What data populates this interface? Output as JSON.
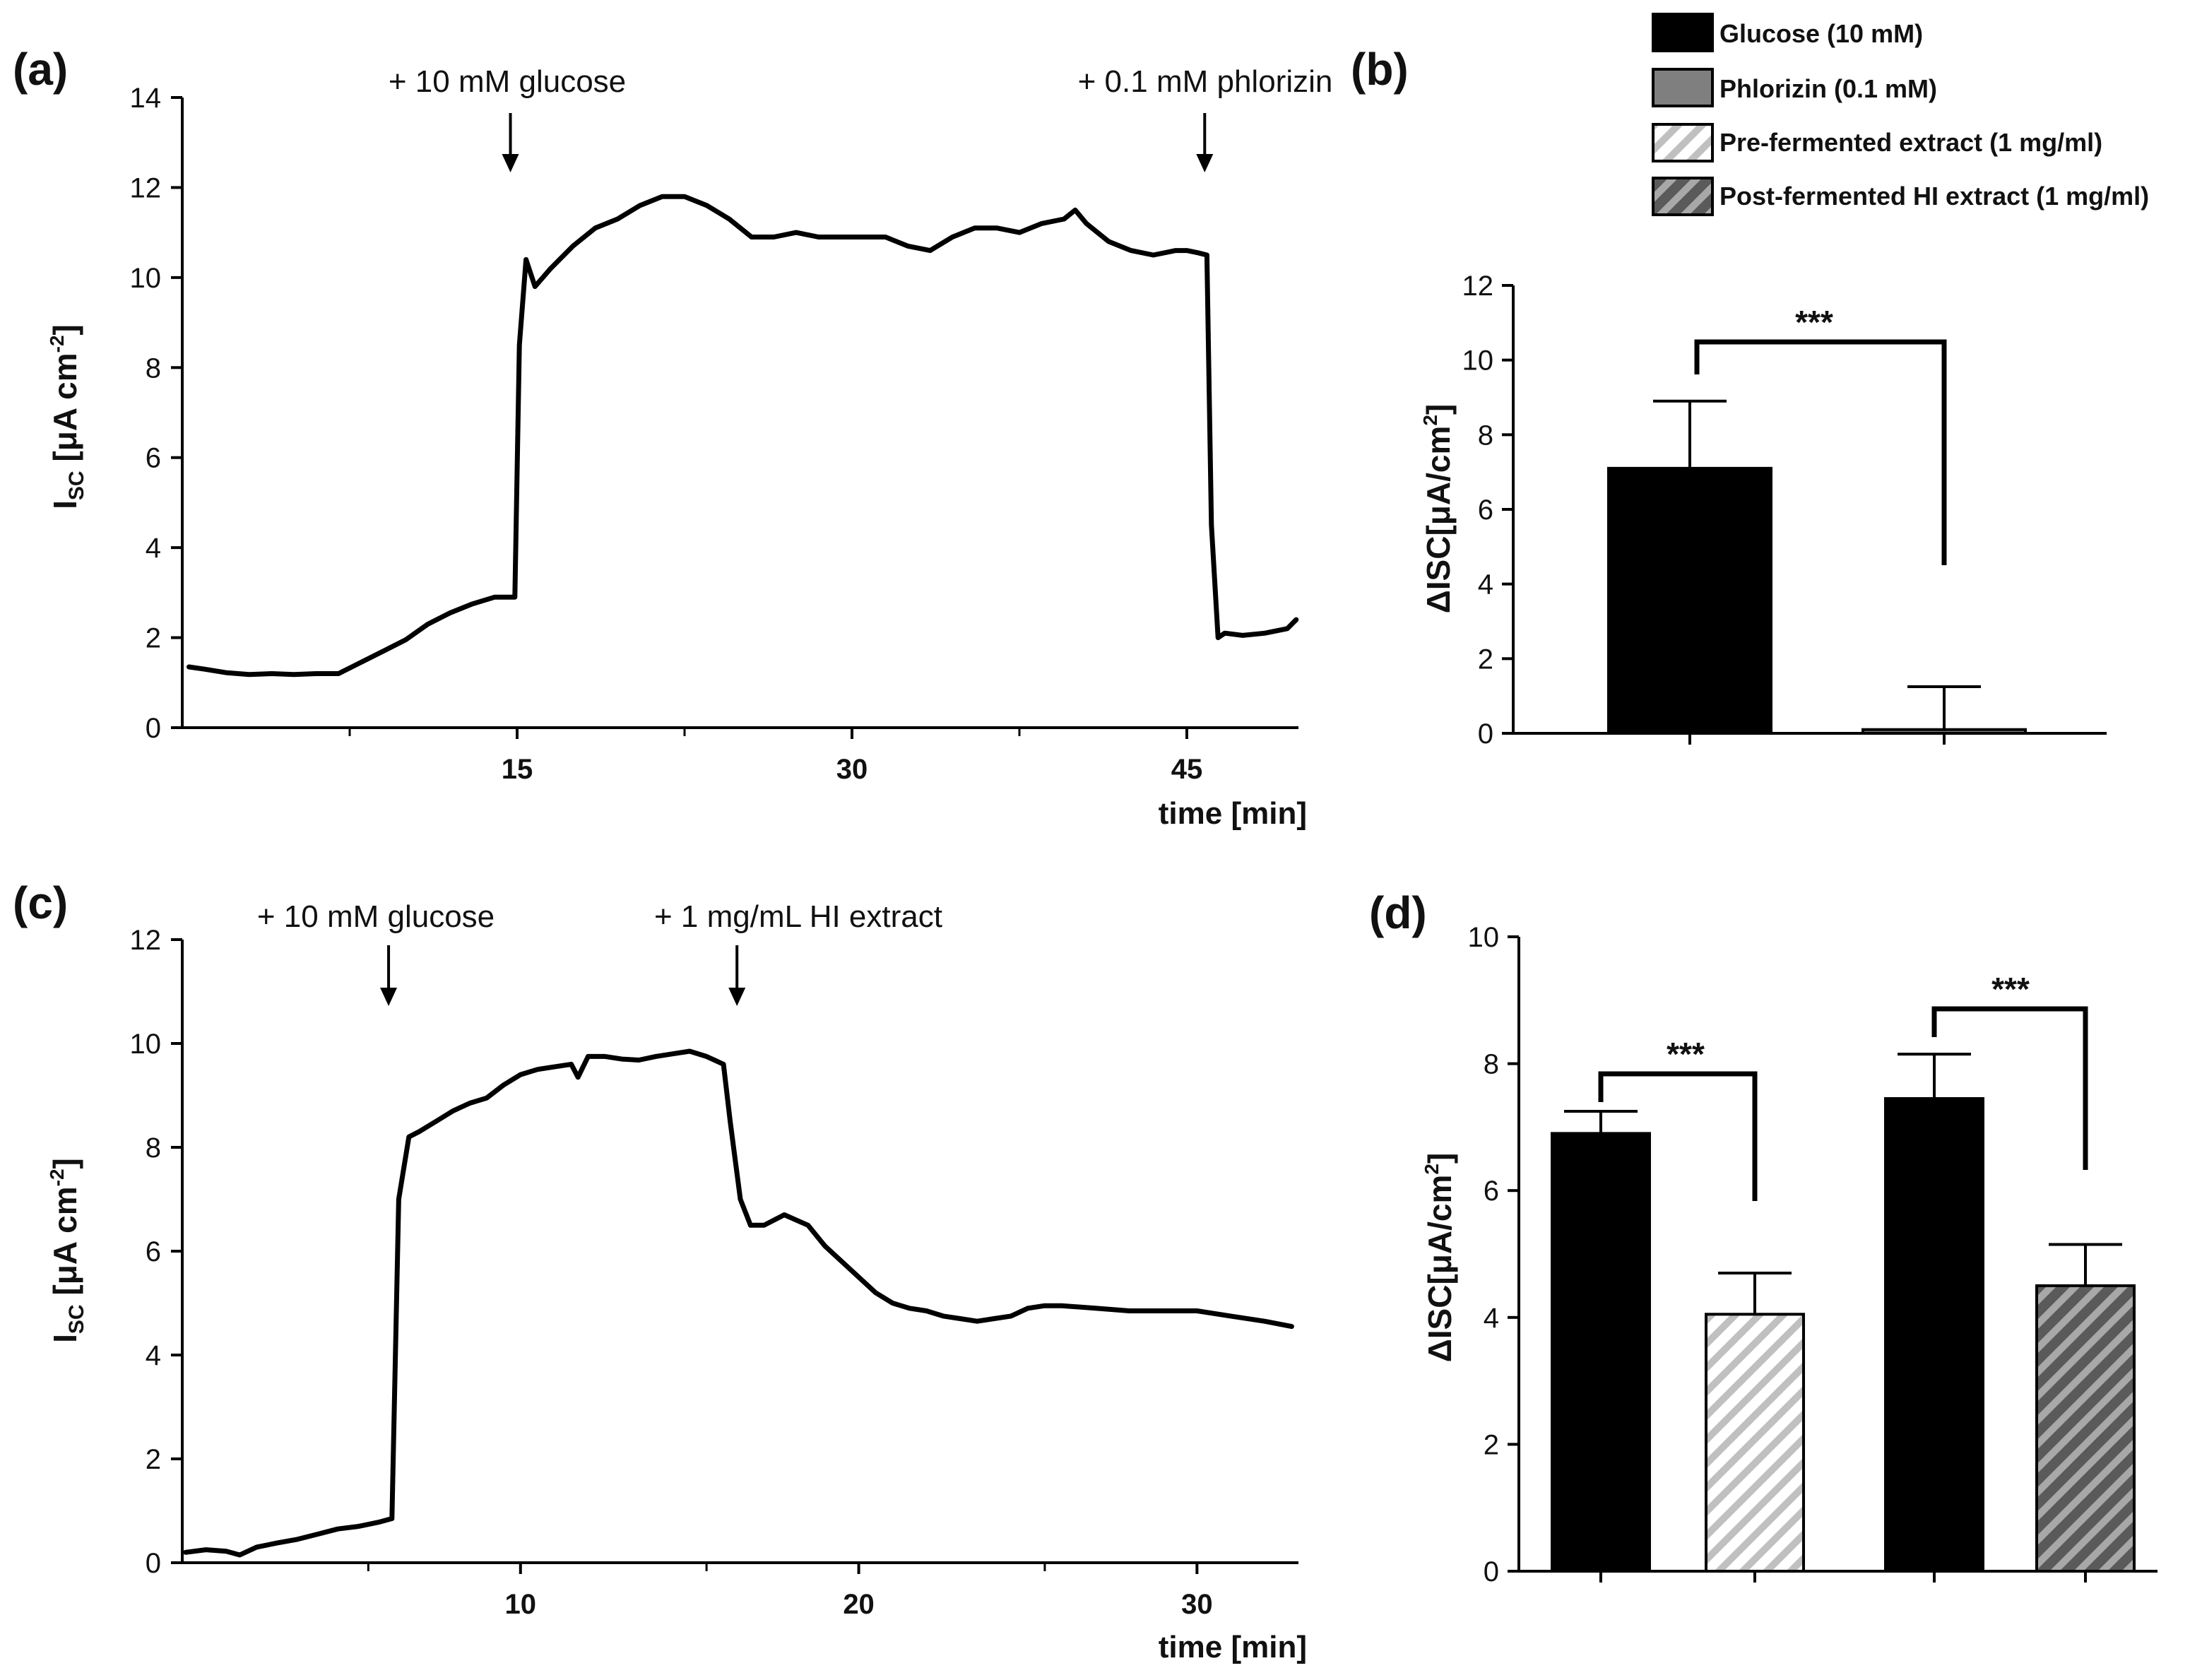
{
  "chart_data": [
    {
      "panel": "(a)",
      "type": "line",
      "xlabel": "time [min]",
      "ylabel_main": "I",
      "ylabel_sub": "SC",
      "ylabel_unit": " [μA cm",
      "ylabel_sup": "-2",
      "ylabel_close": "]",
      "xlim": [
        0,
        50
      ],
      "ylim": [
        0,
        14
      ],
      "xticks": [
        15,
        30,
        45
      ],
      "xminor": [
        7.5,
        22.5,
        37.5
      ],
      "yticks": [
        0,
        2,
        4,
        6,
        8,
        10,
        12,
        14
      ],
      "annotations": [
        {
          "text": "+ 10 mM glucose",
          "x": 14.7
        },
        {
          "text": "+ 0.1 mM phlorizin",
          "x": 45.8
        }
      ],
      "series": [
        {
          "name": "Isc",
          "x": [
            0.3,
            1,
            2,
            3,
            4,
            5,
            6,
            7,
            8,
            9,
            10,
            11,
            12,
            13,
            14,
            14.9,
            15.1,
            15.4,
            15.8,
            16.5,
            17.5,
            18.5,
            19.5,
            20.5,
            21.5,
            22.5,
            23.5,
            24.5,
            25.5,
            26.5,
            27.5,
            28.5,
            29.5,
            30.5,
            31.5,
            32.5,
            33.5,
            34.5,
            35.5,
            36.5,
            37.5,
            38.5,
            39.5,
            40,
            40.5,
            41.5,
            42.5,
            43.5,
            44.5,
            45,
            45.5,
            45.9,
            46.1,
            46.4,
            46.7,
            47.5,
            48.5,
            49.5,
            49.9
          ],
          "y": [
            1.35,
            1.3,
            1.22,
            1.18,
            1.2,
            1.18,
            1.2,
            1.2,
            1.45,
            1.7,
            1.95,
            2.3,
            2.55,
            2.75,
            2.9,
            2.9,
            8.5,
            10.4,
            9.8,
            10.2,
            10.7,
            11.1,
            11.3,
            11.6,
            11.8,
            11.8,
            11.6,
            11.3,
            10.9,
            10.9,
            11.0,
            10.9,
            10.9,
            10.9,
            10.9,
            10.7,
            10.6,
            10.9,
            11.1,
            11.1,
            11.0,
            11.2,
            11.3,
            11.5,
            11.2,
            10.8,
            10.6,
            10.5,
            10.6,
            10.6,
            10.55,
            10.5,
            4.5,
            2.0,
            2.1,
            2.05,
            2.1,
            2.2,
            2.4
          ]
        }
      ]
    },
    {
      "panel": "(b)",
      "type": "bar",
      "categories": [
        "Glucose (10 mM)",
        "Phlorizin (0.1 mM)"
      ],
      "values": [
        7.1,
        0.1
      ],
      "errors": [
        1.8,
        1.15
      ],
      "fills": [
        "black",
        "gray"
      ],
      "ylabel": "ΔISC[μA/cm",
      "ylabel_sup": "2",
      "ylabel_close": "]",
      "ylim": [
        0,
        12
      ],
      "yticks": [
        0,
        2,
        4,
        6,
        8,
        10,
        12
      ],
      "significance": [
        {
          "between": [
            0,
            1
          ],
          "text": "***"
        }
      ]
    },
    {
      "panel": "(c)",
      "type": "line",
      "xlabel": "time [min]",
      "ylabel_main": "I",
      "ylabel_sub": "SC",
      "ylabel_unit": " [μA cm",
      "ylabel_sup": "-2",
      "ylabel_close": "]",
      "xlim": [
        0,
        33
      ],
      "ylim": [
        0,
        12
      ],
      "xticks": [
        10,
        20,
        30
      ],
      "xminor": [
        5.5,
        15.5,
        25.5
      ],
      "yticks": [
        0,
        2,
        4,
        6,
        8,
        10,
        12
      ],
      "annotations": [
        {
          "text": "+ 10 mM glucose",
          "x": 6.1
        },
        {
          "text": "+  1 mg/mL  HI extract",
          "x": 16.4
        }
      ],
      "series": [
        {
          "name": "Isc",
          "x": [
            0.1,
            0.7,
            1.3,
            1.7,
            2.2,
            2.8,
            3.4,
            4,
            4.6,
            5.2,
            5.8,
            6.2,
            6.4,
            6.7,
            7,
            7.5,
            8,
            8.5,
            9,
            9.5,
            10,
            10.5,
            11,
            11.5,
            11.7,
            12,
            12.5,
            13,
            13.5,
            14,
            14.5,
            15,
            15.5,
            16,
            16.2,
            16.5,
            16.8,
            17.2,
            17.8,
            18.5,
            19,
            19.5,
            20,
            20.5,
            21,
            21.5,
            22,
            22.5,
            23,
            23.5,
            24,
            24.5,
            25,
            25.5,
            26,
            27,
            28,
            29,
            30,
            31,
            32,
            32.8
          ],
          "y": [
            0.2,
            0.25,
            0.22,
            0.15,
            0.3,
            0.38,
            0.45,
            0.55,
            0.65,
            0.7,
            0.78,
            0.85,
            7.0,
            8.2,
            8.3,
            8.5,
            8.7,
            8.85,
            8.95,
            9.2,
            9.4,
            9.5,
            9.55,
            9.6,
            9.35,
            9.75,
            9.75,
            9.7,
            9.68,
            9.75,
            9.8,
            9.85,
            9.75,
            9.6,
            8.5,
            7.0,
            6.5,
            6.5,
            6.7,
            6.5,
            6.1,
            5.8,
            5.5,
            5.2,
            5.0,
            4.9,
            4.85,
            4.75,
            4.7,
            4.65,
            4.7,
            4.75,
            4.9,
            4.95,
            4.95,
            4.9,
            4.85,
            4.85,
            4.85,
            4.75,
            4.65,
            4.55
          ]
        }
      ]
    },
    {
      "panel": "(d)",
      "type": "bar",
      "categories": [
        "Glucose (10 mM)",
        "Pre-fermented extract (1 mg/ml)",
        "Glucose (10 mM)",
        "Post-fermented HI extract (1 mg/ml)"
      ],
      "values": [
        6.9,
        4.05,
        7.45,
        4.5
      ],
      "errors": [
        0.35,
        0.65,
        0.7,
        0.65
      ],
      "fills": [
        "black",
        "hatch-light",
        "black",
        "hatch-dark"
      ],
      "ylabel": "ΔISC[μA/cm",
      "ylabel_sup": "2",
      "ylabel_close": "]",
      "ylim": [
        0,
        10
      ],
      "yticks": [
        0,
        2,
        4,
        6,
        8,
        10
      ],
      "significance": [
        {
          "between": [
            0,
            1
          ],
          "text": "***"
        },
        {
          "between": [
            2,
            3
          ],
          "text": "***"
        }
      ]
    }
  ],
  "legend": {
    "items": [
      {
        "label": "Glucose (10 mM)",
        "fill": "black"
      },
      {
        "label": "Phlorizin (0.1 mM)",
        "fill": "gray"
      },
      {
        "label": "Pre-fermented extract (1 mg/ml)",
        "fill": "hatch-light"
      },
      {
        "label": "Post-fermented HI extract (1 mg/ml)",
        "fill": "hatch-dark"
      }
    ]
  },
  "colors": {
    "line": "#000000",
    "black_bar": "#000000",
    "gray_bar": "#7f7f7f",
    "hatch_light_bg": "#ffffff",
    "hatch_light_stripe": "#c0c0c0",
    "hatch_dark_bg": "#5a5a5a",
    "hatch_dark_stripe": "#a8a8a8"
  }
}
